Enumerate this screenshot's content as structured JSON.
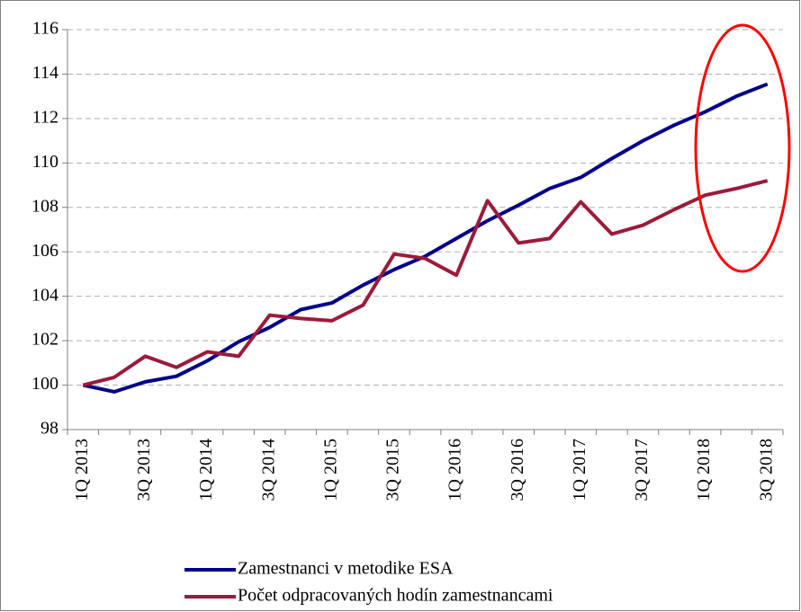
{
  "chart_data": {
    "type": "line",
    "categories": [
      "1Q 2013",
      null,
      "3Q 2013",
      null,
      "1Q 2014",
      null,
      "3Q 2014",
      null,
      "1Q 2015",
      null,
      "3Q 2015",
      null,
      "1Q 2016",
      null,
      "3Q 2016",
      null,
      "1Q 2017",
      null,
      "3Q 2017",
      null,
      "1Q 2018",
      null,
      "3Q 2018"
    ],
    "series": [
      {
        "name": "Zamestnanci v metodike ESA",
        "color": "#00008b",
        "values": [
          100,
          99.7,
          100.15,
          100.4,
          101.1,
          101.95,
          102.6,
          103.4,
          103.7,
          104.5,
          105.2,
          105.8,
          106.6,
          107.4,
          108.1,
          108.85,
          109.35,
          110.2,
          111.0,
          111.7,
          112.3,
          113.0,
          113.55
        ]
      },
      {
        "name": "Počet odpracovaných hodín zamestnancami",
        "color": "#9b1b3a",
        "values": [
          100,
          100.35,
          101.3,
          100.8,
          101.5,
          101.3,
          103.15,
          103.0,
          102.9,
          103.6,
          105.9,
          105.7,
          104.95,
          108.3,
          106.4,
          106.6,
          108.25,
          106.8,
          107.2,
          107.9,
          108.55,
          108.85,
          109.2
        ]
      }
    ],
    "ylim": [
      98,
      116
    ],
    "yticks": [
      98,
      100,
      102,
      104,
      106,
      108,
      110,
      112,
      114,
      116
    ],
    "grid": true,
    "legend": "bottom"
  }
}
